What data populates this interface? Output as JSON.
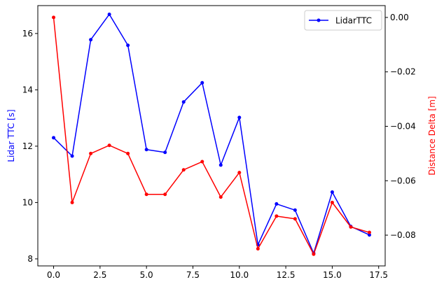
{
  "chart_data": {
    "type": "line",
    "x": [
      0,
      1,
      2,
      3,
      4,
      5,
      6,
      7,
      8,
      9,
      10,
      11,
      12,
      13,
      14,
      15,
      16,
      17
    ],
    "series": [
      {
        "name": "LidarTTC",
        "axis": "left",
        "color": "#0000ff",
        "values": [
          12.3,
          11.65,
          15.78,
          16.68,
          15.58,
          11.88,
          11.78,
          13.57,
          14.25,
          11.33,
          13.02,
          8.5,
          9.95,
          9.73,
          8.2,
          10.37,
          9.15,
          8.85
        ]
      },
      {
        "axis": "right",
        "color": "#ff0000",
        "values": [
          0.0,
          -0.068,
          -0.05,
          -0.047,
          -0.05,
          -0.065,
          -0.065,
          -0.056,
          -0.053,
          -0.066,
          -0.057,
          -0.085,
          -0.073,
          -0.074,
          -0.087,
          -0.068,
          -0.077,
          -0.079
        ]
      }
    ],
    "xlim": [
      -0.85,
      17.85
    ],
    "ylim_left": [
      7.75,
      16.99
    ],
    "ylim_right": [
      -0.0913,
      0.00435
    ],
    "xticks": [
      0.0,
      2.5,
      5.0,
      7.5,
      10.0,
      12.5,
      15.0,
      17.5
    ],
    "xtick_labels": [
      "0.0",
      "2.5",
      "5.0",
      "7.5",
      "10.0",
      "12.5",
      "15.0",
      "17.5"
    ],
    "yticks_left": [
      8,
      10,
      12,
      14,
      16
    ],
    "ytick_labels_left": [
      "8",
      "10",
      "12",
      "14",
      "16"
    ],
    "yticks_right": [
      -0.08,
      -0.06,
      -0.04,
      -0.02,
      0.0
    ],
    "ytick_labels_right": [
      "−0.08",
      "−0.06",
      "−0.04",
      "−0.02",
      "0.00"
    ],
    "ylabel_left": "Lidar TTC [s]",
    "ylabel_right": "Distance Delta [m]",
    "ylabel_left_color": "#0000ff",
    "ylabel_right_color": "#ff0000",
    "legend": {
      "label": "LidarTTC",
      "position": "top-right"
    },
    "grid": false
  }
}
